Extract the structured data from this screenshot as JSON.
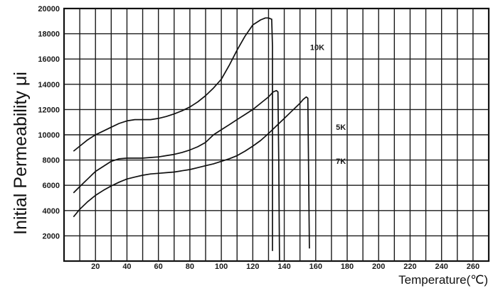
{
  "chart_data": {
    "type": "line",
    "xlabel": "Temperature(℃)",
    "ylabel": "Initial Permeability μi",
    "xlim": [
      0,
      270
    ],
    "ylim": [
      0,
      20000
    ],
    "x_ticks": [
      "20",
      "40",
      "60",
      "80",
      "100",
      "120",
      "140",
      "160",
      "180",
      "200",
      "220",
      "240",
      "260"
    ],
    "y_ticks": [
      "2000",
      "4000",
      "6000",
      "8000",
      "10000",
      "12000",
      "14000",
      "16000",
      "18000",
      "20000"
    ],
    "grid": true,
    "series": [
      {
        "name": "10K",
        "x": [
          6,
          10,
          15,
          20,
          25,
          30,
          35,
          40,
          45,
          50,
          55,
          60,
          65,
          70,
          75,
          80,
          85,
          90,
          95,
          100,
          105,
          110,
          115,
          120,
          125,
          128,
          130,
          132,
          132.5,
          132.5
        ],
        "y": [
          8700,
          9100,
          9600,
          10000,
          10300,
          10600,
          10900,
          11100,
          11200,
          11200,
          11200,
          11300,
          11450,
          11650,
          11900,
          12200,
          12600,
          13100,
          13700,
          14400,
          15500,
          16700,
          17800,
          18700,
          19100,
          19250,
          19250,
          19150,
          17000,
          800
        ]
      },
      {
        "name": "5K",
        "x": [
          6,
          10,
          15,
          20,
          25,
          30,
          35,
          40,
          45,
          50,
          55,
          60,
          65,
          70,
          75,
          80,
          85,
          90,
          95,
          100,
          105,
          110,
          115,
          120,
          125,
          130,
          133,
          135,
          136,
          136.5,
          137
        ],
        "y": [
          5400,
          5900,
          6500,
          7100,
          7500,
          7900,
          8100,
          8150,
          8150,
          8150,
          8200,
          8250,
          8350,
          8450,
          8600,
          8800,
          9050,
          9400,
          10000,
          10400,
          10800,
          11200,
          11600,
          12000,
          12500,
          13000,
          13400,
          13500,
          13400,
          8000,
          0
        ]
      },
      {
        "name": "7K",
        "x": [
          6,
          10,
          15,
          20,
          25,
          30,
          35,
          40,
          45,
          50,
          55,
          60,
          65,
          70,
          75,
          80,
          85,
          90,
          95,
          100,
          105,
          110,
          115,
          120,
          125,
          130,
          135,
          140,
          145,
          150,
          152,
          154,
          155,
          156
        ],
        "y": [
          3500,
          4100,
          4700,
          5200,
          5600,
          5950,
          6250,
          6500,
          6650,
          6800,
          6900,
          6950,
          7000,
          7050,
          7150,
          7250,
          7400,
          7550,
          7700,
          7900,
          8100,
          8350,
          8700,
          9100,
          9550,
          10100,
          10700,
          11300,
          11900,
          12500,
          12800,
          13000,
          12900,
          1000
        ]
      }
    ]
  }
}
